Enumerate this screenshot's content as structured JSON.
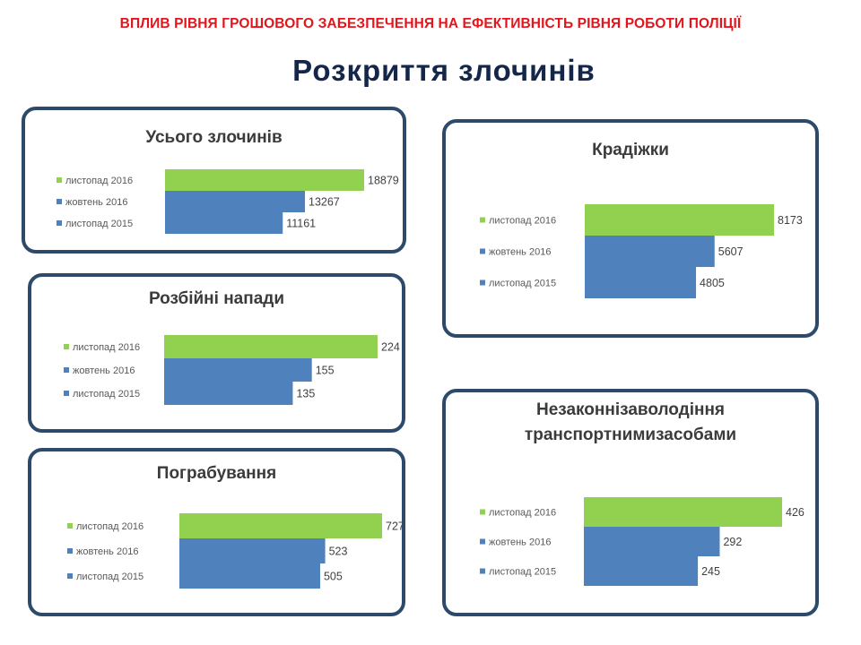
{
  "header": {
    "subtitle": "ВПЛИВ РІВНЯ ГРОШОВОГО ЗАБЕЗПЕЧЕННЯ НА ЕФЕКТИВНІСТЬ РІВНЯ РОБОТИ ПОЛІЦІЇ",
    "title": "Розкриття злочинів"
  },
  "colors": {
    "series_2016_nov": "#92d050",
    "series_other": "#4f81bd",
    "panel_border": "#2e4a6a",
    "subtitle": "#e3141b",
    "title": "#14274a"
  },
  "chart_data": [
    {
      "type": "bar",
      "orientation": "horizontal",
      "title": "Усього злочинів",
      "categories": [
        "листопад 2016",
        "жовтень 2016",
        "листопад 2015"
      ],
      "values": [
        18879,
        13267,
        11161
      ],
      "bar_colors": [
        "#92d050",
        "#4f81bd",
        "#4f81bd"
      ],
      "legend": "left",
      "grid": false
    },
    {
      "type": "bar",
      "orientation": "horizontal",
      "title": "Розбійні напади",
      "categories": [
        "листопад 2016",
        "жовтень 2016",
        "листопад 2015"
      ],
      "values": [
        224,
        155,
        135
      ],
      "bar_colors": [
        "#92d050",
        "#4f81bd",
        "#4f81bd"
      ],
      "legend": "left",
      "grid": false
    },
    {
      "type": "bar",
      "orientation": "horizontal",
      "title": "Пограбування",
      "categories": [
        "листопад 2016",
        "жовтень 2016",
        "листопад 2015"
      ],
      "values": [
        727,
        523,
        505
      ],
      "bar_colors": [
        "#92d050",
        "#4f81bd",
        "#4f81bd"
      ],
      "legend": "left",
      "grid": false
    },
    {
      "type": "bar",
      "orientation": "horizontal",
      "title": "Крадіжки",
      "categories": [
        "листопад 2016",
        "жовтень 2016",
        "листопад 2015"
      ],
      "values": [
        8173,
        5607,
        4805
      ],
      "bar_colors": [
        "#92d050",
        "#4f81bd",
        "#4f81bd"
      ],
      "legend": "left",
      "grid": false
    },
    {
      "type": "bar",
      "orientation": "horizontal",
      "title": [
        "Незаконнізаволодіння",
        "транспортнимизасобами"
      ],
      "categories": [
        "листопад 2016",
        "жовтень 2016",
        "листопад 2015"
      ],
      "values": [
        426,
        292,
        245
      ],
      "bar_colors": [
        "#92d050",
        "#4f81bd",
        "#4f81bd"
      ],
      "legend": "left",
      "grid": false
    }
  ]
}
